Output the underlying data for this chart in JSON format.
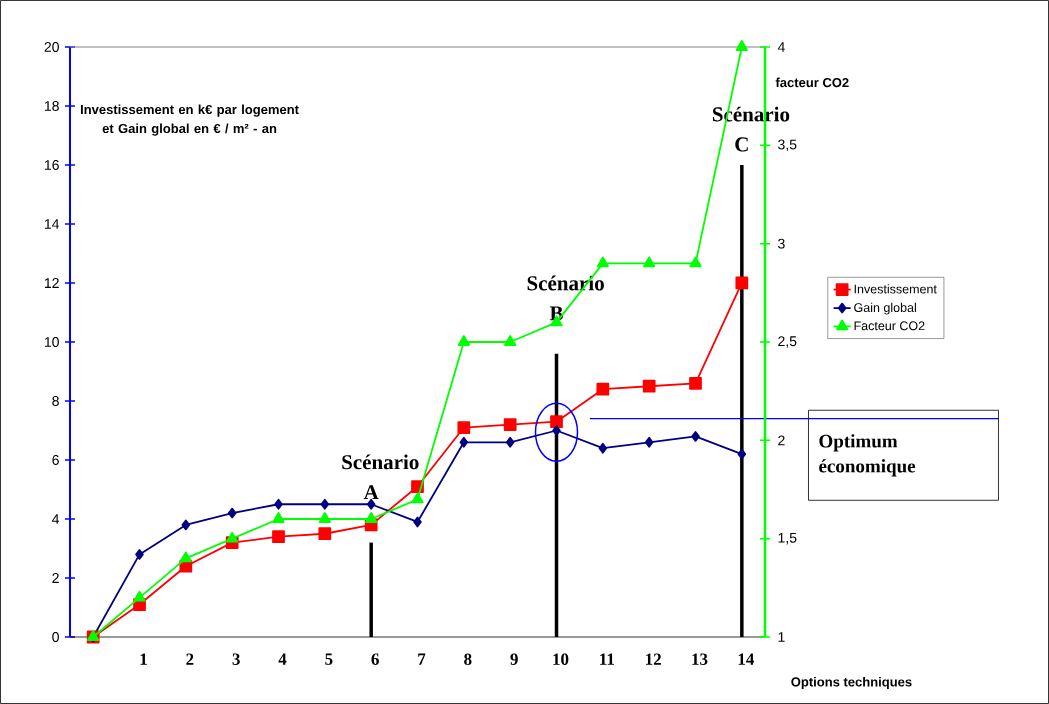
{
  "chart_data": {
    "type": "line",
    "ylabel": "Investissement en k€ par logement  et Gain global en € / m² - an",
    "y2label": "facteur CO2",
    "xlabel": "Options techniques",
    "categories": [
      null,
      "1",
      "2",
      "3",
      "4",
      "5",
      "6",
      "7",
      "8",
      "9",
      "10",
      "11",
      "12",
      "13",
      "14"
    ],
    "series": [
      {
        "name": "Investissement",
        "color": "#ff0000",
        "marker": "square",
        "values": [
          0,
          1.1,
          2.4,
          3.2,
          3.4,
          3.5,
          3.8,
          5.1,
          7.1,
          7.2,
          7.3,
          8.4,
          8.5,
          8.6,
          12.0
        ]
      },
      {
        "name": "Gain global",
        "color": "#000080",
        "marker": "diamond",
        "values": [
          0,
          2.8,
          3.8,
          4.2,
          4.5,
          4.5,
          4.5,
          3.9,
          6.6,
          6.6,
          7.0,
          6.4,
          6.6,
          6.8,
          6.2
        ]
      },
      {
        "name": "Facteur CO2",
        "color": "#00ff00",
        "marker": "triangle",
        "axis": "y2",
        "values": [
          1,
          1.2,
          1.4,
          1.5,
          1.6,
          1.6,
          1.6,
          1.7,
          2.5,
          2.5,
          2.6,
          2.9,
          2.9,
          2.9,
          4.0
        ]
      }
    ],
    "ylim": [
      0,
      20
    ],
    "yticks": [
      0,
      2,
      4,
      6,
      8,
      10,
      12,
      14,
      16,
      18,
      20
    ],
    "y2lim": [
      1,
      4
    ],
    "y2ticks": [
      1,
      {
        "value": 1.5,
        "label": "1,5"
      },
      2,
      {
        "value": 2.5,
        "label": "2,5"
      },
      3,
      {
        "value": 3.5,
        "label": "3,5"
      },
      4
    ],
    "legend": "right",
    "line_style": "solid",
    "ref_lines": [
      {
        "axis": "x",
        "value": "6",
        "label": "Scénario A",
        "color": "#000000"
      },
      {
        "axis": "x",
        "value": "10",
        "label": "Scénario B",
        "color": "#000000"
      },
      {
        "axis": "x",
        "value": "14",
        "label": "Scénario C",
        "color": "#000000"
      },
      {
        "axis": "y",
        "value": 7.4,
        "label": "Optimum économique",
        "color": "#0000ff"
      }
    ]
  }
}
